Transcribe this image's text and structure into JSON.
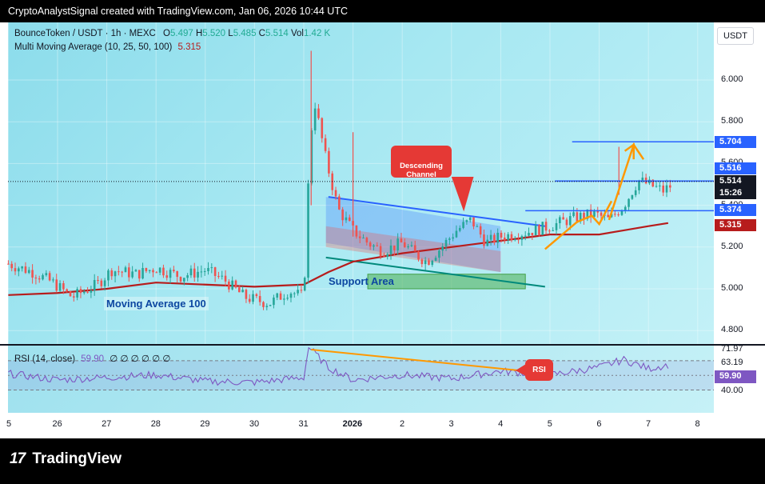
{
  "header": {
    "creator_line": "CryptoAnalystSignal created with TradingView.com, Jan 06, 2026 10:44 UTC"
  },
  "legend": {
    "symbol": "BounceToken / USDT · 1h · MEXC",
    "o_label": "O",
    "o": "5.497",
    "h_label": "H",
    "h": "5.520",
    "l_label": "L",
    "l": "5.485",
    "c_label": "C",
    "c": "5.514",
    "vol_label": "Vol",
    "vol": "1.42 K",
    "ma_label": "Multi Moving Average (10, 25, 50, 100)",
    "ma_value": "5.315"
  },
  "currency_button": "USDT",
  "annotations": {
    "descending_channel": "Descending\nChannel",
    "support_area": "Support Area",
    "moving_average": "Moving Average 100",
    "rsi_callout": "RSI"
  },
  "rsi_legend": {
    "label": "RSI (14, close)",
    "value": "59.90",
    "extras": "∅ ∅ ∅ ∅ ∅ ∅"
  },
  "footer": {
    "brand": "TradingView",
    "logo_mark": "17"
  },
  "colors": {
    "up": "#26a69a",
    "down": "#ef5350",
    "ma": "#b71c1c",
    "channel": "#2962ff",
    "arrow": "#ff9800",
    "rsi": "#7e57c2",
    "price_badge": "#131722",
    "line_badge": "#2962ff",
    "ma_badge": "#b71c1c",
    "callout": "#e53935"
  },
  "chart_data": [
    {
      "type": "line",
      "series_kind": "candlestick",
      "ylim": [
        4.7,
        6.25
      ],
      "y_ticks": [
        "6.000",
        "5.800",
        "5.600",
        "5.400",
        "5.200",
        "5.000",
        "4.800"
      ],
      "x_ticks": [
        "5",
        "26",
        "27",
        "28",
        "29",
        "30",
        "31",
        "2026",
        "2",
        "3",
        "4",
        "5",
        "6",
        "7",
        "8"
      ],
      "price_labels": [
        {
          "value": "5.704",
          "kind": "line"
        },
        {
          "value": "5.516",
          "kind": "line"
        },
        {
          "value": "5.514",
          "kind": "price"
        },
        {
          "value": "15:26",
          "kind": "timer"
        },
        {
          "value": "5.374",
          "kind": "line"
        },
        {
          "value": "5.315",
          "kind": "ma"
        }
      ],
      "horizontal_levels": [
        5.704,
        5.516,
        5.374
      ],
      "current_price": 5.514,
      "price_path": [
        {
          "d": 25.0,
          "p": 5.12
        },
        {
          "d": 25.5,
          "p": 5.08
        },
        {
          "d": 25.9,
          "p": 5.03
        },
        {
          "d": 26.3,
          "p": 4.96
        },
        {
          "d": 26.8,
          "p": 5.02
        },
        {
          "d": 27.1,
          "p": 5.09
        },
        {
          "d": 27.6,
          "p": 5.07
        },
        {
          "d": 28.0,
          "p": 5.1
        },
        {
          "d": 28.5,
          "p": 5.06
        },
        {
          "d": 29.0,
          "p": 5.09
        },
        {
          "d": 29.4,
          "p": 5.04
        },
        {
          "d": 29.8,
          "p": 4.96
        },
        {
          "d": 30.3,
          "p": 4.93
        },
        {
          "d": 30.7,
          "p": 4.99
        },
        {
          "d": 31.0,
          "p": 4.96
        },
        {
          "d": 31.1,
          "p": 5.55
        },
        {
          "d": 31.2,
          "p": 5.92
        },
        {
          "d": 31.45,
          "p": 5.62
        },
        {
          "d": 31.7,
          "p": 5.38
        },
        {
          "d": 32.0,
          "p": 5.28
        },
        {
          "d": 32.3,
          "p": 5.22
        },
        {
          "d": 32.6,
          "p": 5.18
        },
        {
          "d": 33.0,
          "p": 5.22
        },
        {
          "d": 33.3,
          "p": 5.16
        },
        {
          "d": 33.5,
          "p": 5.13
        },
        {
          "d": 33.8,
          "p": 5.2
        },
        {
          "d": 34.1,
          "p": 5.28
        },
        {
          "d": 34.4,
          "p": 5.33
        },
        {
          "d": 34.7,
          "p": 5.22
        },
        {
          "d": 35.0,
          "p": 5.25
        },
        {
          "d": 35.5,
          "p": 5.27
        },
        {
          "d": 36.0,
          "p": 5.3
        },
        {
          "d": 36.5,
          "p": 5.34
        },
        {
          "d": 36.9,
          "p": 5.36
        },
        {
          "d": 37.2,
          "p": 5.33
        },
        {
          "d": 37.5,
          "p": 5.4
        },
        {
          "d": 37.8,
          "p": 5.52
        },
        {
          "d": 38.0,
          "p": 5.5
        },
        {
          "d": 38.3,
          "p": 5.47
        },
        {
          "d": 38.5,
          "p": 5.5
        }
      ],
      "spikes": [
        {
          "d": 31.15,
          "high": 6.14,
          "low": 5.4
        },
        {
          "d": 32.0,
          "high": 5.75,
          "low": 5.25
        },
        {
          "d": 37.4,
          "high": 5.68,
          "low": 5.45
        }
      ],
      "ma100": [
        {
          "d": 25.0,
          "v": 4.97
        },
        {
          "d": 26.0,
          "v": 4.98
        },
        {
          "d": 27.0,
          "v": 5.0
        },
        {
          "d": 28.0,
          "v": 5.03
        },
        {
          "d": 29.0,
          "v": 5.02
        },
        {
          "d": 30.0,
          "v": 5.01
        },
        {
          "d": 31.0,
          "v": 5.02
        },
        {
          "d": 31.5,
          "v": 5.08
        },
        {
          "d": 32.0,
          "v": 5.13
        },
        {
          "d": 33.0,
          "v": 5.17
        },
        {
          "d": 34.0,
          "v": 5.2
        },
        {
          "d": 35.0,
          "v": 5.23
        },
        {
          "d": 36.0,
          "v": 5.26
        },
        {
          "d": 36.5,
          "v": 5.26
        },
        {
          "d": 37.0,
          "v": 5.26
        },
        {
          "d": 37.5,
          "v": 5.28
        },
        {
          "d": 38.0,
          "v": 5.3
        },
        {
          "d": 38.4,
          "v": 5.315
        }
      ]
    },
    {
      "type": "line",
      "name": "RSI (14, close)",
      "ylim": [
        30,
        78
      ],
      "y_ticks": [
        "71.97",
        "63.19",
        "40.00"
      ],
      "current_value": "59.90",
      "values": [
        {
          "d": 25.0,
          "v": 53
        },
        {
          "d": 26.0,
          "v": 48
        },
        {
          "d": 27.0,
          "v": 50
        },
        {
          "d": 28.0,
          "v": 52
        },
        {
          "d": 29.0,
          "v": 47
        },
        {
          "d": 30.0,
          "v": 46
        },
        {
          "d": 31.0,
          "v": 50
        },
        {
          "d": 31.1,
          "v": 74
        },
        {
          "d": 31.5,
          "v": 58
        },
        {
          "d": 32.0,
          "v": 48
        },
        {
          "d": 33.0,
          "v": 52
        },
        {
          "d": 34.0,
          "v": 49
        },
        {
          "d": 35.0,
          "v": 55
        },
        {
          "d": 36.0,
          "v": 52
        },
        {
          "d": 37.0,
          "v": 58
        },
        {
          "d": 37.5,
          "v": 64
        },
        {
          "d": 38.0,
          "v": 57
        },
        {
          "d": 38.4,
          "v": 59.9
        }
      ]
    }
  ]
}
